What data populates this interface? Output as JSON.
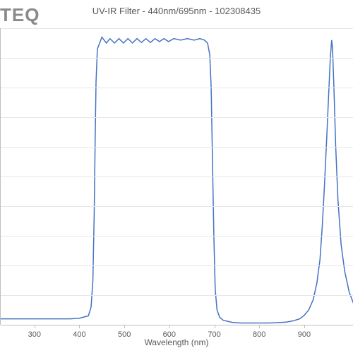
{
  "logo": "TEQ",
  "chart": {
    "type": "line",
    "title": "UV-IR Filter - 440nm/695nm - 102308435",
    "title_fontsize": 13,
    "title_color": "#595959",
    "xlabel": "Wavelength (nm)",
    "xlabel_fontsize": 12,
    "background_color": "#ffffff",
    "grid_color": "#e6e6e6",
    "axis_color": "#bfbfbf",
    "line_color": "#4472c4",
    "line_width": 1.5,
    "x_range": [
      225,
      1010
    ],
    "y_range": [
      0,
      1.0
    ],
    "x_ticks": [
      300,
      400,
      500,
      600,
      700,
      800,
      900
    ],
    "n_grid_lines": 10,
    "series": [
      [
        225,
        0.02
      ],
      [
        300,
        0.02
      ],
      [
        380,
        0.02
      ],
      [
        400,
        0.022
      ],
      [
        420,
        0.03
      ],
      [
        426,
        0.06
      ],
      [
        430,
        0.15
      ],
      [
        433,
        0.38
      ],
      [
        435,
        0.62
      ],
      [
        437,
        0.82
      ],
      [
        440,
        0.93
      ],
      [
        445,
        0.95
      ],
      [
        450,
        0.97
      ],
      [
        460,
        0.95
      ],
      [
        468,
        0.965
      ],
      [
        478,
        0.95
      ],
      [
        488,
        0.965
      ],
      [
        498,
        0.95
      ],
      [
        508,
        0.965
      ],
      [
        518,
        0.95
      ],
      [
        528,
        0.965
      ],
      [
        538,
        0.952
      ],
      [
        548,
        0.965
      ],
      [
        558,
        0.952
      ],
      [
        568,
        0.965
      ],
      [
        578,
        0.955
      ],
      [
        588,
        0.965
      ],
      [
        598,
        0.955
      ],
      [
        610,
        0.965
      ],
      [
        625,
        0.96
      ],
      [
        640,
        0.965
      ],
      [
        655,
        0.96
      ],
      [
        668,
        0.965
      ],
      [
        678,
        0.96
      ],
      [
        685,
        0.95
      ],
      [
        690,
        0.91
      ],
      [
        693,
        0.8
      ],
      [
        696,
        0.55
      ],
      [
        699,
        0.3
      ],
      [
        702,
        0.12
      ],
      [
        706,
        0.05
      ],
      [
        712,
        0.025
      ],
      [
        720,
        0.015
      ],
      [
        740,
        0.008
      ],
      [
        760,
        0.006
      ],
      [
        780,
        0.006
      ],
      [
        800,
        0.006
      ],
      [
        820,
        0.006
      ],
      [
        840,
        0.007
      ],
      [
        860,
        0.009
      ],
      [
        875,
        0.013
      ],
      [
        890,
        0.02
      ],
      [
        900,
        0.032
      ],
      [
        910,
        0.05
      ],
      [
        920,
        0.085
      ],
      [
        928,
        0.14
      ],
      [
        935,
        0.22
      ],
      [
        940,
        0.33
      ],
      [
        945,
        0.47
      ],
      [
        950,
        0.63
      ],
      [
        955,
        0.8
      ],
      [
        958,
        0.9
      ],
      [
        961,
        0.96
      ],
      [
        963,
        0.93
      ],
      [
        966,
        0.8
      ],
      [
        970,
        0.6
      ],
      [
        975,
        0.42
      ],
      [
        982,
        0.27
      ],
      [
        990,
        0.18
      ],
      [
        1000,
        0.11
      ],
      [
        1010,
        0.07
      ]
    ]
  }
}
